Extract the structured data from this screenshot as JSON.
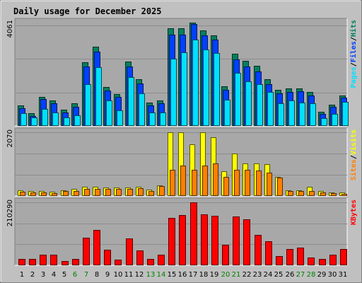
{
  "chart_data": {
    "type": "bar",
    "title": "Daily usage for December 2025",
    "categories": [
      "1",
      "2",
      "3",
      "4",
      "5",
      "6",
      "7",
      "8",
      "9",
      "10",
      "11",
      "12",
      "13",
      "14",
      "15",
      "16",
      "17",
      "18",
      "19",
      "20",
      "21",
      "22",
      "23",
      "24",
      "25",
      "26",
      "27",
      "28",
      "29",
      "30",
      "31"
    ],
    "weekend_days": [
      "6",
      "7",
      "13",
      "14",
      "20",
      "21",
      "27",
      "28"
    ],
    "colors": {
      "title": "#0000aa",
      "background": "#c0c0c0",
      "plot_background": "#a8a8a8",
      "pages": "#00e0ff",
      "files": "#0040ff",
      "hits": "#008060",
      "visits": "#ffff00",
      "sites": "#ff8000",
      "kbytes": "#ff0000",
      "weekend_label": "#008000",
      "weekday_label": "#000000"
    },
    "panels": [
      {
        "id": "hits_files_pages",
        "ymax_label": "4061",
        "ymax": 4061,
        "legend": [
          "Pages",
          "/",
          "Files",
          "/",
          "Hits"
        ],
        "legend_colors": [
          "#00e0ff",
          "#000000",
          "#0040ff",
          "#000000",
          "#008060"
        ],
        "series": [
          {
            "name": "Hits",
            "values": [
              800,
              500,
              1130,
              1000,
              640,
              890,
              2500,
              3110,
              1520,
              1240,
              2540,
              1830,
              930,
              1010,
              3850,
              3850,
              4060,
              3760,
              3570,
              1560,
              2850,
              2550,
              2370,
              1830,
              1410,
              1480,
              1480,
              1340,
              560,
              830,
              1200
            ]
          },
          {
            "name": "Files",
            "values": [
              700,
              400,
              1050,
              880,
              530,
              760,
              2350,
              2920,
              1400,
              1130,
              2350,
              1670,
              810,
              900,
              3600,
              3600,
              4000,
              3550,
              3400,
              1430,
              2620,
              2330,
              2150,
              1640,
              1290,
              1340,
              1360,
              1200,
              470,
              760,
              1100
            ]
          },
          {
            "name": "Pages",
            "values": [
              500,
              340,
              670,
              530,
              340,
              430,
              1650,
              2300,
              1000,
              600,
              1930,
              1270,
              530,
              520,
              2650,
              2900,
              3400,
              3000,
              2870,
              1040,
              2080,
              1740,
              1640,
              1340,
              900,
              990,
              910,
              880,
              300,
              460,
              940
            ]
          }
        ]
      },
      {
        "id": "visits_sites",
        "ymax_label": "2070",
        "ymax": 2070,
        "legend": [
          "Sites",
          "/",
          "Visits"
        ],
        "legend_colors": [
          "#ff8000",
          "#000000",
          "#ffff00"
        ],
        "series": [
          {
            "name": "Visits",
            "values": [
              190,
              170,
              170,
              130,
              190,
              240,
              300,
              310,
              270,
              270,
              280,
              310,
              210,
              350,
              2070,
              2070,
              1680,
              2070,
              1910,
              810,
              1390,
              1050,
              1050,
              1030,
              620,
              190,
              190,
              300,
              150,
              120,
              110
            ]
          },
          {
            "name": "Sites",
            "values": [
              140,
              120,
              120,
              100,
              150,
              170,
              240,
              230,
              220,
              220,
              240,
              250,
              160,
              330,
              850,
              990,
              850,
              990,
              1050,
              610,
              850,
              840,
              830,
              770,
              600,
              170,
              160,
              170,
              110,
              90,
              80
            ]
          }
        ]
      },
      {
        "id": "kbytes",
        "ymax_label": "210290",
        "ymax": 210290,
        "legend": [
          "KBytes"
        ],
        "legend_colors": [
          "#ff0000"
        ],
        "series": [
          {
            "name": "KBytes",
            "values": [
              21000,
              21000,
              36000,
              36000,
              13000,
              21000,
              93000,
              117000,
              52000,
              19000,
              90000,
              50000,
              21000,
              36000,
              159000,
              167000,
              210000,
              169000,
              165000,
              68000,
              164000,
              154000,
              102000,
              81000,
              31000,
              54000,
              59000,
              27000,
              21000,
              36000,
              55000
            ]
          }
        ]
      }
    ]
  }
}
